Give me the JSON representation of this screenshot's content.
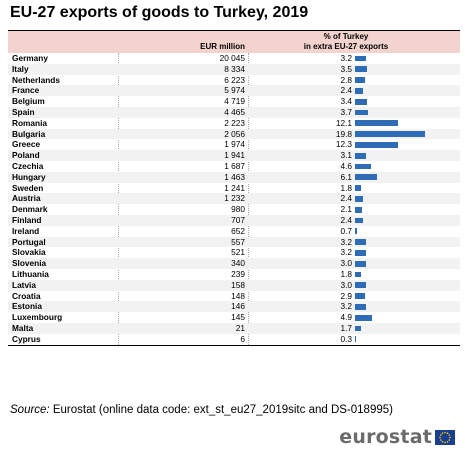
{
  "title": "EU-27 exports of goods to Turkey, 2019",
  "table": {
    "header": {
      "eur": "EUR million",
      "pct_line1": "% of Turkey",
      "pct_line2": "in extra EU-27 exports"
    }
  },
  "chart_data": {
    "type": "table",
    "title": "EU-27 exports of goods to Turkey, 2019",
    "columns": [
      "",
      "EUR million",
      "% of Turkey in extra EU-27 exports"
    ],
    "bar_color": "#2e6cb5",
    "header_color": "#f2d3cd",
    "rows": [
      {
        "country": "Germany",
        "eur": "20 045",
        "pct": "3.2",
        "value": 3.2
      },
      {
        "country": "Italy",
        "eur": "8 334",
        "pct": "3.5",
        "value": 3.5
      },
      {
        "country": "Netherlands",
        "eur": "6 223",
        "pct": "2.8",
        "value": 2.8
      },
      {
        "country": "France",
        "eur": "5 974",
        "pct": "2.4",
        "value": 2.4
      },
      {
        "country": "Belgium",
        "eur": "4 719",
        "pct": "3.4",
        "value": 3.4
      },
      {
        "country": "Spain",
        "eur": "4 465",
        "pct": "3.7",
        "value": 3.7
      },
      {
        "country": "Romania",
        "eur": "2 223",
        "pct": "12.1",
        "value": 12.1
      },
      {
        "country": "Bulgaria",
        "eur": "2 056",
        "pct": "19.8",
        "value": 19.8
      },
      {
        "country": "Greece",
        "eur": "1 974",
        "pct": "12.3",
        "value": 12.3
      },
      {
        "country": "Poland",
        "eur": "1 941",
        "pct": "3.1",
        "value": 3.1
      },
      {
        "country": "Czechia",
        "eur": "1 687",
        "pct": "4.6",
        "value": 4.6
      },
      {
        "country": "Hungary",
        "eur": "1 463",
        "pct": "6.1",
        "value": 6.1
      },
      {
        "country": "Sweden",
        "eur": "1 241",
        "pct": "1.8",
        "value": 1.8
      },
      {
        "country": "Austria",
        "eur": "1 232",
        "pct": "2.4",
        "value": 2.4
      },
      {
        "country": "Denmark",
        "eur": "980",
        "pct": "2.1",
        "value": 2.1
      },
      {
        "country": "Finland",
        "eur": "707",
        "pct": "2.4",
        "value": 2.4
      },
      {
        "country": "Ireland",
        "eur": "652",
        "pct": "0.7",
        "value": 0.7
      },
      {
        "country": "Portugal",
        "eur": "557",
        "pct": "3.2",
        "value": 3.2
      },
      {
        "country": "Slovakia",
        "eur": "521",
        "pct": "3.2",
        "value": 3.2
      },
      {
        "country": "Slovenia",
        "eur": "340",
        "pct": "3.0",
        "value": 3.0
      },
      {
        "country": "Lithuania",
        "eur": "239",
        "pct": "1.8",
        "value": 1.8
      },
      {
        "country": "Latvia",
        "eur": "158",
        "pct": "3.0",
        "value": 3.0
      },
      {
        "country": "Croatia",
        "eur": "148",
        "pct": "2.9",
        "value": 2.9
      },
      {
        "country": "Estonia",
        "eur": "146",
        "pct": "3.2",
        "value": 3.2
      },
      {
        "country": "Luxembourg",
        "eur": "145",
        "pct": "4.9",
        "value": 4.9
      },
      {
        "country": "Malta",
        "eur": "21",
        "pct": "1.7",
        "value": 1.7
      },
      {
        "country": "Cyprus",
        "eur": "6",
        "pct": "0.3",
        "value": 0.3
      }
    ]
  },
  "source": {
    "label": "Source:",
    "text": "Eurostat (online data code: ext_st_eu27_2019sitc and DS-018995)"
  },
  "logo": {
    "text": "eurostat",
    "icon": "eu-flag-icon"
  }
}
